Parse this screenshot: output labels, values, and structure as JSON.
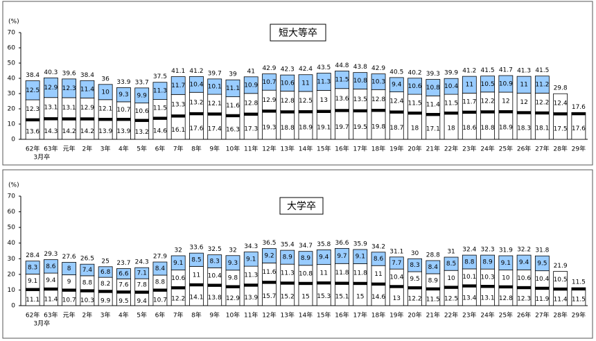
{
  "chart_data": [
    {
      "type": "stacked-bar",
      "title": "短大等卒",
      "y_label": "(%)",
      "category_note": "3月卒",
      "categories": [
        "62年",
        "63年",
        "元年",
        "2年",
        "3年",
        "4年",
        "5年",
        "6年",
        "7年",
        "8年",
        "9年",
        "10年",
        "11年",
        "12年",
        "13年",
        "14年",
        "15年",
        "16年",
        "17年",
        "18年",
        "19年",
        "20年",
        "21年",
        "22年",
        "23年",
        "24年",
        "25年",
        "26年",
        "27年",
        "28年",
        "29年"
      ],
      "series": [
        {
          "color": "#ffffff",
          "values": [
            13.6,
            14.3,
            14.2,
            14.2,
            13.9,
            13.9,
            13.2,
            14.6,
            16.1,
            17.6,
            17.4,
            16.3,
            17.3,
            19.3,
            18.8,
            18.9,
            19.1,
            19.7,
            19.5,
            19.8,
            18.7,
            18.0,
            17.1,
            18.0,
            18.6,
            18.8,
            18.9,
            18.3,
            18.1,
            17.5,
            17.6
          ]
        },
        {
          "color": "#ffffff",
          "values": [
            12.3,
            13.1,
            13.1,
            12.9,
            12.1,
            10.7,
            10.6,
            11.5,
            13.3,
            13.2,
            12.1,
            11.6,
            12.8,
            12.9,
            12.8,
            12.5,
            13.0,
            13.6,
            13.5,
            12.8,
            12.4,
            11.5,
            11.4,
            11.5,
            11.7,
            12.2,
            12.0,
            12.0,
            12.2,
            12.4,
            null
          ]
        },
        {
          "color": "#99ccff",
          "values": [
            12.5,
            12.9,
            12.3,
            11.4,
            10.0,
            9.3,
            9.9,
            11.3,
            11.7,
            10.4,
            10.1,
            11.1,
            10.9,
            10.7,
            10.6,
            11.0,
            11.3,
            11.5,
            10.8,
            10.3,
            9.4,
            10.6,
            10.8,
            10.4,
            11.0,
            10.5,
            10.9,
            11.0,
            11.2,
            null,
            null
          ]
        }
      ],
      "totals": [
        38.4,
        40.3,
        39.6,
        38.4,
        36.0,
        33.9,
        33.7,
        37.5,
        41.1,
        41.2,
        39.7,
        39.0,
        41.0,
        42.9,
        42.3,
        42.4,
        43.5,
        44.8,
        43.8,
        42.9,
        40.5,
        40.2,
        39.3,
        39.9,
        41.2,
        41.5,
        41.7,
        41.3,
        41.5,
        29.8,
        17.6
      ],
      "ylim": [
        0,
        70
      ],
      "yticks": [
        0,
        10,
        20,
        30,
        40,
        50,
        60,
        70
      ]
    },
    {
      "type": "stacked-bar",
      "title": "大学卒",
      "y_label": "(%)",
      "category_note": "3月卒",
      "categories": [
        "62年",
        "63年",
        "元年",
        "2年",
        "3年",
        "4年",
        "5年",
        "6年",
        "7年",
        "8年",
        "9年",
        "10年",
        "11年",
        "12年",
        "13年",
        "14年",
        "15年",
        "16年",
        "17年",
        "18年",
        "19年",
        "20年",
        "21年",
        "22年",
        "23年",
        "24年",
        "25年",
        "26年",
        "27年",
        "28年",
        "29年"
      ],
      "series": [
        {
          "color": "#ffffff",
          "values": [
            11.1,
            11.4,
            10.7,
            10.3,
            9.9,
            9.5,
            9.4,
            10.7,
            12.2,
            14.1,
            13.8,
            12.9,
            13.9,
            15.7,
            15.2,
            15.0,
            15.3,
            15.1,
            15.0,
            14.6,
            13.0,
            12.2,
            11.5,
            12.5,
            13.4,
            13.1,
            12.8,
            12.3,
            11.9,
            11.4,
            11.5
          ]
        },
        {
          "color": "#ffffff",
          "values": [
            9.1,
            9.4,
            9.0,
            8.8,
            8.2,
            7.6,
            7.8,
            8.8,
            10.6,
            11.0,
            10.4,
            9.8,
            11.3,
            11.6,
            11.3,
            10.8,
            11.0,
            11.8,
            11.8,
            11.0,
            10.4,
            9.5,
            8.9,
            10.0,
            10.1,
            10.3,
            10.0,
            10.6,
            10.4,
            10.5,
            null
          ]
        },
        {
          "color": "#99ccff",
          "values": [
            8.3,
            8.6,
            8.0,
            7.4,
            6.8,
            6.6,
            7.1,
            8.4,
            9.1,
            8.5,
            8.3,
            9.3,
            9.1,
            9.2,
            8.9,
            8.9,
            9.4,
            9.7,
            9.1,
            8.6,
            7.7,
            8.3,
            8.4,
            8.5,
            8.8,
            8.9,
            9.1,
            9.4,
            9.5,
            null,
            null
          ]
        }
      ],
      "totals": [
        28.4,
        29.3,
        27.6,
        26.5,
        25.0,
        23.7,
        24.3,
        27.9,
        32.0,
        33.6,
        32.5,
        32.0,
        34.3,
        36.5,
        35.4,
        34.7,
        35.8,
        36.6,
        35.9,
        34.2,
        31.1,
        30.0,
        28.8,
        31.0,
        32.4,
        32.3,
        31.9,
        32.2,
        31.8,
        21.9,
        11.5
      ],
      "ylim": [
        0,
        70
      ],
      "yticks": [
        0,
        10,
        20,
        30,
        40,
        50,
        60,
        70
      ]
    }
  ]
}
